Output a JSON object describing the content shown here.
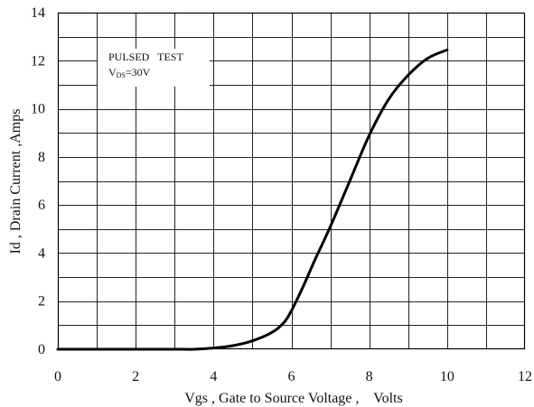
{
  "chart_data": {
    "type": "line",
    "title": "",
    "xlabel": "Vgs , Gate to Source Voltage ,    Volts",
    "ylabel": "Id , Drain Current ,Amps",
    "xlim": [
      0,
      12
    ],
    "ylim": [
      0,
      14
    ],
    "x_major_ticks": [
      0,
      2,
      4,
      6,
      8,
      10,
      12
    ],
    "y_major_ticks": [
      0,
      2,
      4,
      6,
      8,
      10,
      12,
      14
    ],
    "x_tick_labels": [
      "0",
      "2",
      "4",
      "6",
      "8",
      "10",
      "12"
    ],
    "y_tick_labels": [
      "0",
      "2",
      "4",
      "6",
      "8",
      "10",
      "12",
      "14"
    ],
    "x_grid_step": 1,
    "y_grid_step": 1,
    "grid": true,
    "annotation": {
      "line1": "PULSED   TEST",
      "line2_main": "V",
      "line2_sub": "DS",
      "line2_rest": "=30V"
    },
    "series": [
      {
        "color": "#000000",
        "x": [
          0,
          1,
          2,
          3,
          3.5,
          4,
          4.5,
          5,
          5.5,
          5.8,
          6,
          6.3,
          6.6,
          7,
          7.5,
          8,
          8.5,
          9,
          9.5,
          10
        ],
        "y": [
          0,
          0,
          0,
          0,
          0,
          0.05,
          0.15,
          0.35,
          0.7,
          1.1,
          1.6,
          2.6,
          3.7,
          5.1,
          7.0,
          8.9,
          10.4,
          11.4,
          12.1,
          12.45
        ]
      }
    ]
  }
}
